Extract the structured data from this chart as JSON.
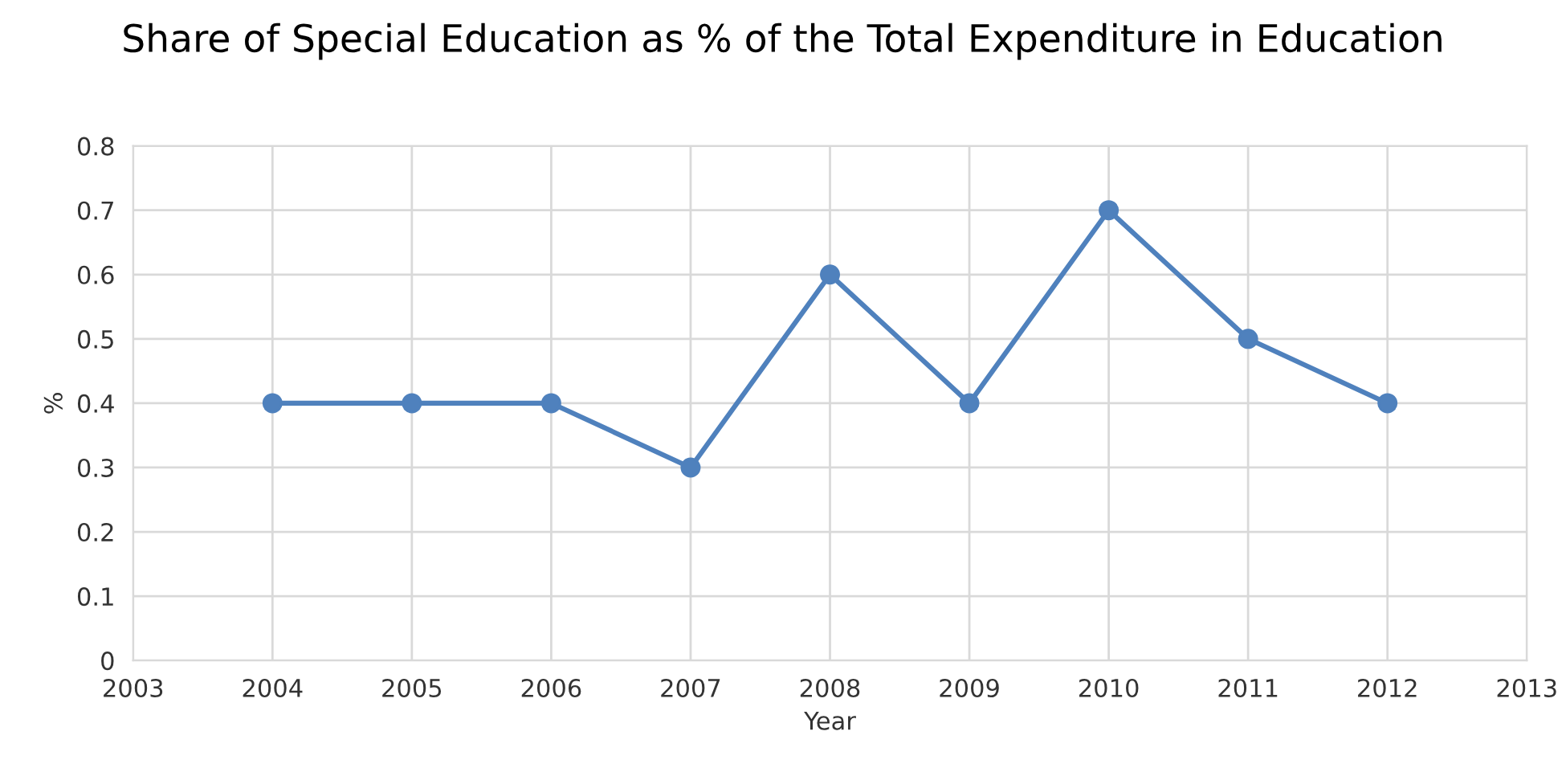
{
  "chart_data": {
    "type": "line",
    "title": "Share of Special Education as % of the Total Expenditure in Education",
    "xlabel": "Year",
    "ylabel": "%",
    "x": [
      2004,
      2005,
      2006,
      2007,
      2008,
      2009,
      2010,
      2011,
      2012
    ],
    "series": [
      {
        "color": "#4f81bd",
        "values": [
          0.4,
          0.4,
          0.4,
          0.3,
          0.6,
          0.4,
          0.7,
          0.5,
          0.4
        ]
      }
    ],
    "xlim": [
      2003,
      2013
    ],
    "xticks": [
      2003,
      2004,
      2005,
      2006,
      2007,
      2008,
      2009,
      2010,
      2011,
      2012,
      2013
    ],
    "ylim": [
      0,
      0.8
    ],
    "yticks": [
      0,
      0.1,
      0.2,
      0.3,
      0.4,
      0.5,
      0.6,
      0.7,
      0.8
    ],
    "grid": true,
    "marker": "circle",
    "line_style": "solid"
  }
}
